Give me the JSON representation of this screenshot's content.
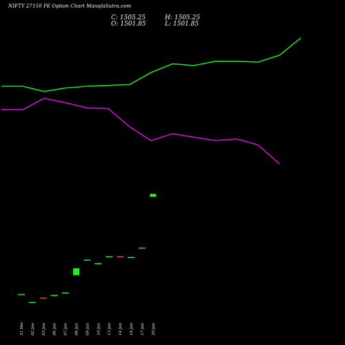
{
  "chart_title": "NIFTY 27150  PE Option  Chart ManafaSutra.com",
  "ohlc": {
    "close_label": "C: 1505.25",
    "high_label": "H: 1505.25",
    "open_label": "O: 1501.85",
    "low_label": "L: 1501.85"
  },
  "colors": {
    "background": "#000000",
    "upper_band": "#22dd22",
    "lower_band": "#cc11cc",
    "candle_up": "#22ee22",
    "candle_down": "#ee4444",
    "text": "#ffffff"
  },
  "chart_data": {
    "type": "candlestick",
    "categories": [
      "31 Dec",
      "02 Jan",
      "03 Jan",
      "06 Jan",
      "07 Jan",
      "08 Jan",
      "09 Jan",
      "10 Jan",
      "13 Jan",
      "14 Jan",
      "16 Jan",
      "17 Jan",
      "20 Jan"
    ],
    "candles": [
      {
        "open": 1389,
        "close": 1389,
        "high": 1389,
        "low": 1389,
        "dir": "up"
      },
      {
        "open": 1380,
        "close": 1380,
        "high": 1380,
        "low": 1380,
        "dir": "up"
      },
      {
        "open": 1385,
        "close": 1385,
        "high": 1385,
        "low": 1385,
        "dir": "down"
      },
      {
        "open": 1388,
        "close": 1388,
        "high": 1388,
        "low": 1388,
        "dir": "up"
      },
      {
        "open": 1391,
        "close": 1391,
        "high": 1391,
        "low": 1391,
        "dir": "up"
      },
      {
        "open": 1411,
        "close": 1419,
        "high": 1419,
        "low": 1411,
        "dir": "up"
      },
      {
        "open": 1429,
        "close": 1429,
        "high": 1429,
        "low": 1429,
        "dir": "up"
      },
      {
        "open": 1425,
        "close": 1425,
        "high": 1425,
        "low": 1425,
        "dir": "up"
      },
      {
        "open": 1433,
        "close": 1433,
        "high": 1433,
        "low": 1433,
        "dir": "up"
      },
      {
        "open": 1433,
        "close": 1433,
        "high": 1433,
        "low": 1433,
        "dir": "down"
      },
      {
        "open": 1432,
        "close": 1432,
        "high": 1432,
        "low": 1432,
        "dir": "up"
      },
      {
        "open": 1443,
        "close": 1443,
        "high": 1443,
        "low": 1443,
        "dir": "up"
      },
      {
        "open": 1501.85,
        "close": 1505.25,
        "high": 1505.25,
        "low": 1501.85,
        "dir": "up"
      }
    ],
    "upper_band": [
      [
        0,
        1630
      ],
      [
        1,
        1630
      ],
      [
        2,
        1624
      ],
      [
        3,
        1628
      ],
      [
        4,
        1630
      ],
      [
        5,
        1631
      ],
      [
        6,
        1632
      ],
      [
        7,
        1646
      ],
      [
        8,
        1656
      ],
      [
        9,
        1654
      ],
      [
        10,
        1659
      ],
      [
        11,
        1659
      ],
      [
        12,
        1658
      ],
      [
        13,
        1666
      ],
      [
        14,
        1686
      ]
    ],
    "lower_band": [
      [
        0,
        1603
      ],
      [
        1,
        1603
      ],
      [
        2,
        1616
      ],
      [
        3,
        1611
      ],
      [
        4,
        1605
      ],
      [
        5,
        1604
      ],
      [
        6,
        1583
      ],
      [
        7,
        1567
      ],
      [
        8,
        1575
      ],
      [
        9,
        1571
      ],
      [
        10,
        1567
      ],
      [
        11,
        1569
      ],
      [
        12,
        1562
      ],
      [
        13,
        1540
      ]
    ],
    "ylim": [
      1330,
      1730
    ],
    "grid": false,
    "legend": "none"
  }
}
